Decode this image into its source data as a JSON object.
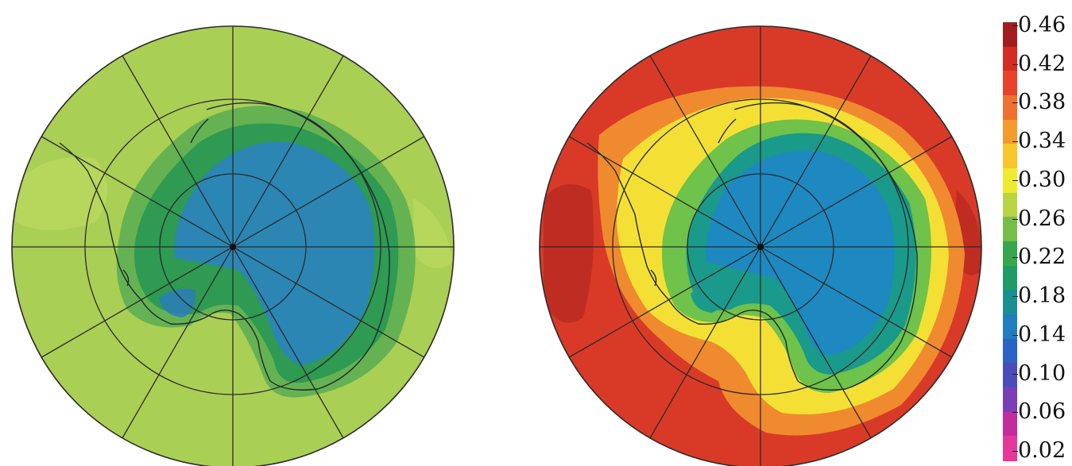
{
  "legend": {
    "ticks": [
      "0.46",
      "0.42",
      "0.38",
      "0.34",
      "0.30",
      "0.26",
      "0.22",
      "0.18",
      "0.14",
      "0.10",
      "0.06",
      "0.02"
    ],
    "colors": [
      "#a21e1e",
      "#d42b23",
      "#e8432a",
      "#f07030",
      "#f59a2c",
      "#f7c72b",
      "#f0ea2e",
      "#b9d542",
      "#77bd4a",
      "#36a64f",
      "#1f9b68",
      "#1a8f92",
      "#1f7dc0",
      "#2a62c6",
      "#4a4cbc",
      "#7a3eb6",
      "#c22c9f",
      "#e8379a"
    ]
  },
  "maps": {
    "left": {
      "ocean_color": "#a9cf55",
      "land_color": "#2e9a52",
      "core_color": "#2a83c4"
    },
    "right": {
      "ocean_color": "#d93a27",
      "land_color": "#1a9a8a",
      "core_color": "#1f86c6",
      "ring_color": "#f4e034"
    }
  }
}
